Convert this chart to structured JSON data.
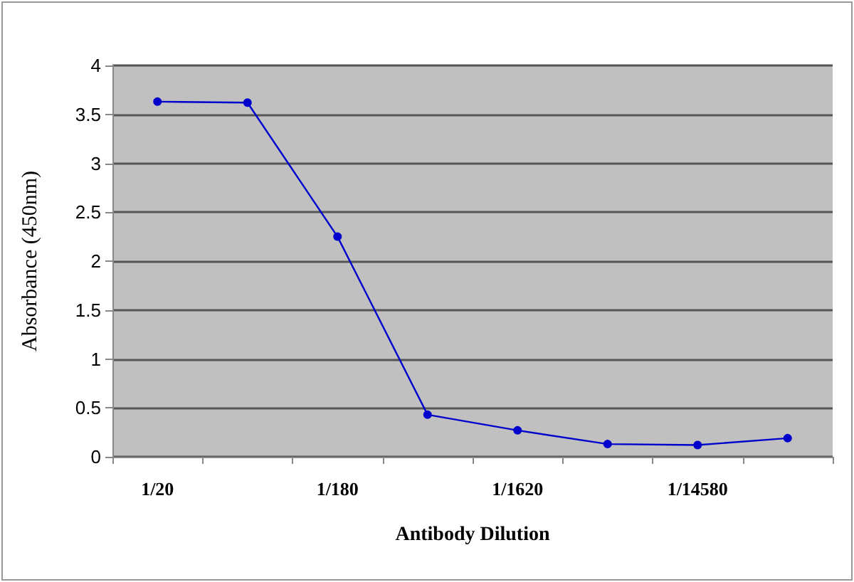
{
  "chart_data": {
    "type": "line",
    "xlabel": "Antibody Dilution",
    "ylabel": "Absorbance (450nm)",
    "categories": [
      "1/20",
      null,
      "1/180",
      null,
      "1/1620",
      null,
      "1/14580",
      null
    ],
    "series": [
      {
        "color": "#0000cc",
        "values": [
          3.63,
          3.62,
          2.25,
          0.43,
          0.27,
          0.13,
          0.12,
          0.19
        ]
      }
    ],
    "ylim": [
      0,
      4
    ],
    "yticks": [
      0,
      0.5,
      1,
      1.5,
      2,
      2.5,
      3,
      3.5,
      4
    ],
    "grid": "y",
    "marker": "circle",
    "line_style": "solid"
  }
}
